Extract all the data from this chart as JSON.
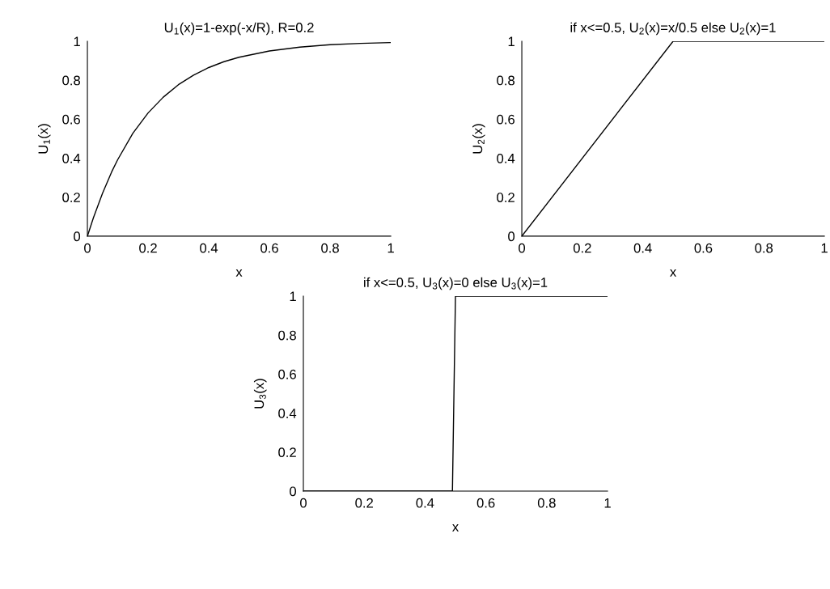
{
  "chart_data": [
    {
      "type": "line",
      "title": "U$_{1}$(x)=1-exp(-x/R), R=0.2",
      "xlabel": "x",
      "ylabel": "U$_{1}$(x)",
      "xlim": [
        0,
        1
      ],
      "ylim": [
        0,
        1
      ],
      "xticks": [
        0,
        0.2,
        0.4,
        0.6,
        0.8,
        1
      ],
      "yticks": [
        0,
        0.2,
        0.4,
        0.6,
        0.8,
        1
      ],
      "series": [
        {
          "color": "#000000",
          "x": [
            0,
            0.02,
            0.05,
            0.08,
            0.1,
            0.15,
            0.2,
            0.25,
            0.3,
            0.35,
            0.4,
            0.45,
            0.5,
            0.6,
            0.7,
            0.8,
            0.9,
            1
          ],
          "values": [
            0,
            0.095,
            0.221,
            0.33,
            0.393,
            0.528,
            0.632,
            0.713,
            0.777,
            0.826,
            0.865,
            0.895,
            0.918,
            0.95,
            0.97,
            0.982,
            0.989,
            0.993
          ]
        }
      ]
    },
    {
      "type": "line",
      "title": "if x<=0.5, U$_{2}$(x)=x/0.5 else U$_{2}$(x)=1",
      "xlabel": "x",
      "ylabel": "U$_{2}$(x)",
      "xlim": [
        0,
        1
      ],
      "ylim": [
        0,
        1
      ],
      "xticks": [
        0,
        0.2,
        0.4,
        0.6,
        0.8,
        1
      ],
      "yticks": [
        0,
        0.2,
        0.4,
        0.6,
        0.8,
        1
      ],
      "series": [
        {
          "color": "#000000",
          "x": [
            0,
            0.5,
            1
          ],
          "values": [
            0,
            1,
            1
          ]
        }
      ]
    },
    {
      "type": "line",
      "title": "if x<=0.5, U$_{3}$(x)=0 else U$_{3}$(x)=1",
      "xlabel": "x",
      "ylabel": "U$_{3}$(x)",
      "xlim": [
        0,
        1
      ],
      "ylim": [
        0,
        1
      ],
      "xticks": [
        0,
        0.2,
        0.4,
        0.6,
        0.8,
        1
      ],
      "yticks": [
        0,
        0.2,
        0.4,
        0.6,
        0.8,
        1
      ],
      "series": [
        {
          "color": "#000000",
          "x": [
            0,
            0.49,
            0.5,
            1
          ],
          "values": [
            0,
            0,
            1,
            1
          ]
        }
      ]
    }
  ]
}
